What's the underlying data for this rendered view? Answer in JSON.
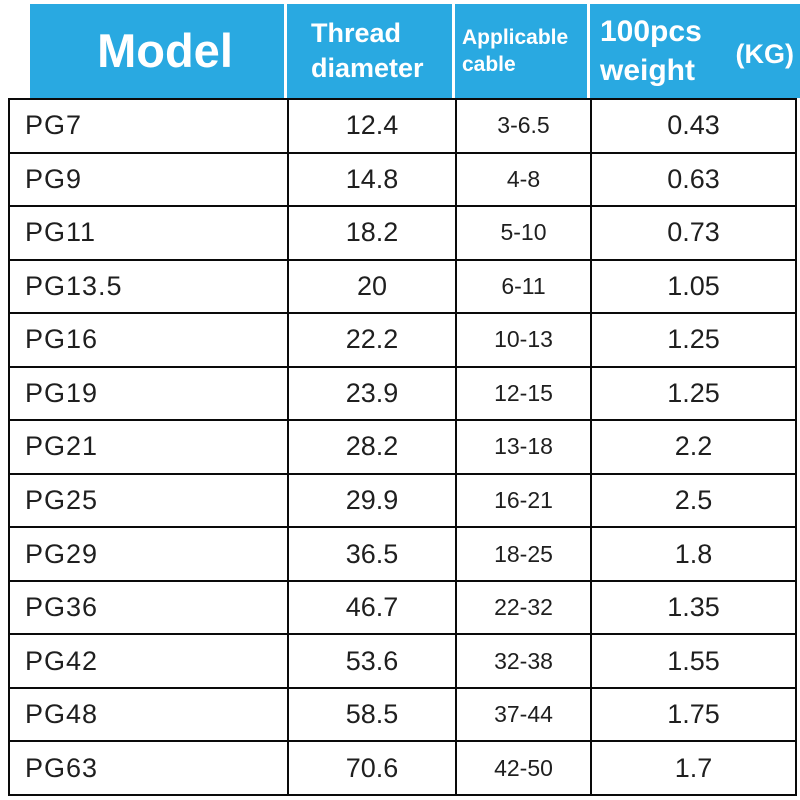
{
  "header": {
    "model_label": "Model",
    "thread_line1": "Thread",
    "thread_line2": "diameter",
    "cable_line1": "Applicable",
    "cable_line2": "cable",
    "weight_line1": "100pcs",
    "weight_line2": "weight",
    "weight_unit": "(KG)"
  },
  "chart_data": {
    "type": "table",
    "title": "PG cable gland specification table",
    "columns": [
      "Model",
      "Thread diameter",
      "Applicable cable",
      "100pcs weight (KG)"
    ],
    "rows": [
      {
        "model": "PG7",
        "thread": "12.4",
        "cable": "3-6.5",
        "weight": "0.43"
      },
      {
        "model": "PG9",
        "thread": "14.8",
        "cable": "4-8",
        "weight": "0.63"
      },
      {
        "model": "PG11",
        "thread": "18.2",
        "cable": "5-10",
        "weight": "0.73"
      },
      {
        "model": "PG13.5",
        "thread": "20",
        "cable": "6-11",
        "weight": "1.05"
      },
      {
        "model": "PG16",
        "thread": "22.2",
        "cable": "10-13",
        "weight": "1.25"
      },
      {
        "model": "PG19",
        "thread": "23.9",
        "cable": "12-15",
        "weight": "1.25"
      },
      {
        "model": "PG21",
        "thread": "28.2",
        "cable": "13-18",
        "weight": "2.2"
      },
      {
        "model": "PG25",
        "thread": "29.9",
        "cable": "16-21",
        "weight": "2.5"
      },
      {
        "model": "PG29",
        "thread": "36.5",
        "cable": "18-25",
        "weight": "1.8"
      },
      {
        "model": "PG36",
        "thread": "46.7",
        "cable": "22-32",
        "weight": "1.35"
      },
      {
        "model": "PG42",
        "thread": "53.6",
        "cable": "32-38",
        "weight": "1.55"
      },
      {
        "model": "PG48",
        "thread": "58.5",
        "cable": "37-44",
        "weight": "1.75"
      },
      {
        "model": "PG63",
        "thread": "70.6",
        "cable": "42-50",
        "weight": "1.7"
      }
    ]
  },
  "colors": {
    "header_bg": "#29A9E1",
    "header_text": "#FFFFFF",
    "body_text": "#1F1F1F",
    "grid": "#0A0A0A",
    "background": "#FFFFFF"
  }
}
